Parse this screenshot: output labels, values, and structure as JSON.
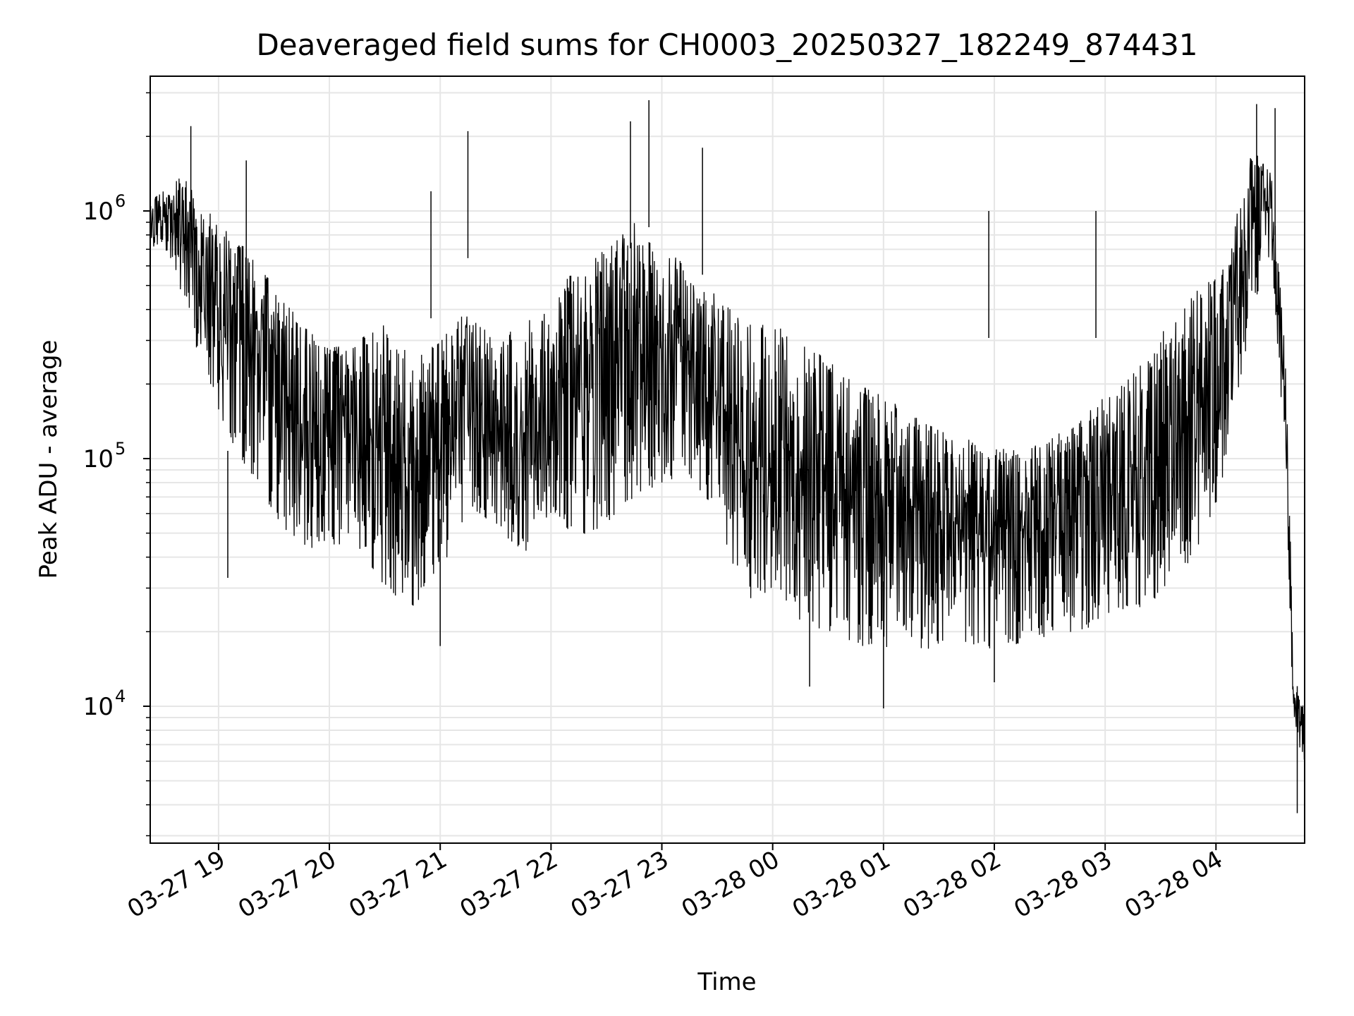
{
  "chart_data": {
    "type": "line",
    "title": "Deaveraged field sums for CH0003_20250327_182249_874431",
    "xlabel": "Time",
    "ylabel": "Peak ADU - average",
    "y_scale": "log",
    "ylim": [
      2800,
      3500000
    ],
    "y_major_ticks": [
      {
        "value": 10000,
        "base": "10",
        "exp": "4"
      },
      {
        "value": 100000,
        "base": "10",
        "exp": "5"
      },
      {
        "value": 1000000,
        "base": "10",
        "exp": "6"
      }
    ],
    "xlim": [
      "2025-03-27 18:23",
      "2025-03-28 04:48"
    ],
    "x_ticks": [
      {
        "time": "2025-03-27 19:00",
        "label": "03-27 19"
      },
      {
        "time": "2025-03-27 20:00",
        "label": "03-27 20"
      },
      {
        "time": "2025-03-27 21:00",
        "label": "03-27 21"
      },
      {
        "time": "2025-03-27 22:00",
        "label": "03-27 22"
      },
      {
        "time": "2025-03-27 23:00",
        "label": "03-27 23"
      },
      {
        "time": "2025-03-28 00:00",
        "label": "03-28 00"
      },
      {
        "time": "2025-03-28 01:00",
        "label": "03-28 01"
      },
      {
        "time": "2025-03-28 02:00",
        "label": "03-28 02"
      },
      {
        "time": "2025-03-28 03:00",
        "label": "03-28 03"
      },
      {
        "time": "2025-03-28 04:00",
        "label": "03-28 04"
      }
    ],
    "grid": true,
    "line_color": "#000000",
    "grid_color": "#e6e6e6",
    "series": [
      {
        "x": [
          "2025-03-27 18:23",
          "2025-03-27 18:30",
          "2025-03-27 18:40",
          "2025-03-27 18:50",
          "2025-03-27 19:00",
          "2025-03-27 19:15",
          "2025-03-27 19:30",
          "2025-03-27 19:45",
          "2025-03-27 20:00",
          "2025-03-27 20:15",
          "2025-03-27 20:30",
          "2025-03-27 20:45",
          "2025-03-27 21:00",
          "2025-03-27 21:15",
          "2025-03-27 21:30",
          "2025-03-27 21:45",
          "2025-03-27 22:00",
          "2025-03-27 22:15",
          "2025-03-27 22:30",
          "2025-03-27 22:45",
          "2025-03-27 23:00",
          "2025-03-27 23:15",
          "2025-03-27 23:30",
          "2025-03-27 23:45",
          "2025-03-28 00:00",
          "2025-03-28 00:15",
          "2025-03-28 00:30",
          "2025-03-28 00:45",
          "2025-03-28 01:00",
          "2025-03-28 01:15",
          "2025-03-28 01:30",
          "2025-03-28 01:45",
          "2025-03-28 02:00",
          "2025-03-28 02:15",
          "2025-03-28 02:30",
          "2025-03-28 02:45",
          "2025-03-28 03:00",
          "2025-03-28 03:15",
          "2025-03-28 03:30",
          "2025-03-28 03:45",
          "2025-03-28 04:00",
          "2025-03-28 04:10",
          "2025-03-28 04:20",
          "2025-03-28 04:30",
          "2025-03-28 04:38",
          "2025-03-28 04:42",
          "2025-03-28 04:48"
        ],
        "low": [
          700000,
          750000,
          450000,
          250000,
          150000,
          90000,
          60000,
          42000,
          45000,
          45000,
          30000,
          25000,
          35000,
          60000,
          55000,
          40000,
          60000,
          45000,
          55000,
          70000,
          80000,
          85000,
          60000,
          25000,
          30000,
          22000,
          20000,
          18000,
          16000,
          17000,
          17000,
          17500,
          17000,
          18000,
          19000,
          20000,
          22000,
          24000,
          28000,
          38000,
          60000,
          150000,
          400000,
          700000,
          80000,
          8000,
          6000
        ],
        "high": [
          1100000,
          1200000,
          1400000,
          1100000,
          900000,
          700000,
          500000,
          350000,
          280000,
          300000,
          350000,
          250000,
          300000,
          400000,
          300000,
          350000,
          450000,
          600000,
          700000,
          900000,
          700000,
          600000,
          450000,
          350000,
          350000,
          300000,
          250000,
          200000,
          180000,
          150000,
          130000,
          120000,
          110000,
          110000,
          120000,
          140000,
          180000,
          220000,
          320000,
          450000,
          550000,
          900000,
          1800000,
          1400000,
          300000,
          12000,
          10000
        ],
        "spikes": [
          {
            "time": "2025-03-27 18:45",
            "value": 2200000
          },
          {
            "time": "2025-03-27 19:15",
            "value": 1600000
          },
          {
            "time": "2025-03-27 21:15",
            "value": 2100000
          },
          {
            "time": "2025-03-27 20:55",
            "value": 1200000
          },
          {
            "time": "2025-03-27 22:43",
            "value": 2300000
          },
          {
            "time": "2025-03-27 22:53",
            "value": 2800000
          },
          {
            "time": "2025-03-27 23:22",
            "value": 1800000
          },
          {
            "time": "2025-03-28 01:57",
            "value": 1000000
          },
          {
            "time": "2025-03-28 02:55",
            "value": 1000000
          },
          {
            "time": "2025-03-28 04:22",
            "value": 2700000
          },
          {
            "time": "2025-03-28 04:32",
            "value": 2600000
          }
        ],
        "dips": [
          {
            "time": "2025-03-27 19:05",
            "value": 33000
          },
          {
            "time": "2025-03-27 21:00",
            "value": 17500
          },
          {
            "time": "2025-03-28 00:20",
            "value": 12000
          },
          {
            "time": "2025-03-28 01:00",
            "value": 9800
          },
          {
            "time": "2025-03-28 02:00",
            "value": 12500
          },
          {
            "time": "2025-03-28 04:44",
            "value": 3700
          }
        ]
      }
    ]
  }
}
